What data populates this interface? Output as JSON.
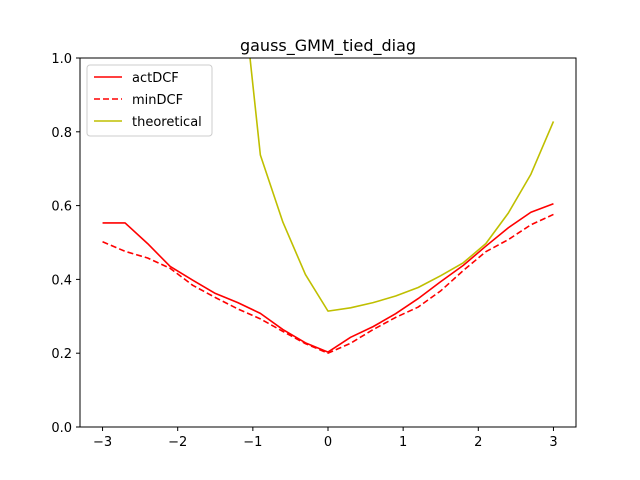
{
  "chart_data": {
    "type": "line",
    "title": "gauss_GMM_tied_diag",
    "xlabel": "",
    "ylabel": "",
    "xlim": [
      -3.3,
      3.3
    ],
    "ylim": [
      0.0,
      1.0
    ],
    "grid": false,
    "legend_position": "top-left",
    "x_ticks": [
      -3,
      -2,
      -1,
      0,
      1,
      2,
      3
    ],
    "x_tick_labels": [
      "−3",
      "−2",
      "−1",
      "0",
      "1",
      "2",
      "3"
    ],
    "y_ticks": [
      0.0,
      0.2,
      0.4,
      0.6,
      0.8,
      1.0
    ],
    "y_tick_labels": [
      "0.0",
      "0.2",
      "0.4",
      "0.6",
      "0.8",
      "1.0"
    ],
    "x": [
      -3.0,
      -2.7,
      -2.4,
      -2.1,
      -1.8,
      -1.5,
      -1.2,
      -0.9,
      -0.6,
      -0.3,
      0.0,
      0.3,
      0.6,
      0.9,
      1.2,
      1.5,
      1.8,
      2.1,
      2.4,
      2.7,
      3.0
    ],
    "series": [
      {
        "name": "actDCF",
        "color": "#ff0000",
        "dash": "solid",
        "values": [
          0.553,
          0.553,
          0.497,
          0.435,
          0.398,
          0.362,
          0.337,
          0.308,
          0.264,
          0.228,
          0.203,
          0.243,
          0.272,
          0.307,
          0.348,
          0.394,
          0.438,
          0.49,
          0.54,
          0.582,
          0.605
        ]
      },
      {
        "name": "minDCF",
        "color": "#ff0000",
        "dash": "dashed",
        "values": [
          0.502,
          0.476,
          0.458,
          0.43,
          0.384,
          0.351,
          0.32,
          0.293,
          0.259,
          0.226,
          0.2,
          0.227,
          0.264,
          0.297,
          0.325,
          0.369,
          0.424,
          0.475,
          0.508,
          0.548,
          0.576
        ]
      },
      {
        "name": "theoretical",
        "color": "#bfbf00",
        "dash": "solid",
        "values": [
          null,
          null,
          null,
          null,
          null,
          null,
          1.31,
          0.737,
          0.555,
          0.413,
          0.314,
          0.323,
          0.337,
          0.355,
          0.378,
          0.41,
          0.445,
          0.497,
          0.58,
          0.685,
          0.828
        ]
      }
    ]
  }
}
